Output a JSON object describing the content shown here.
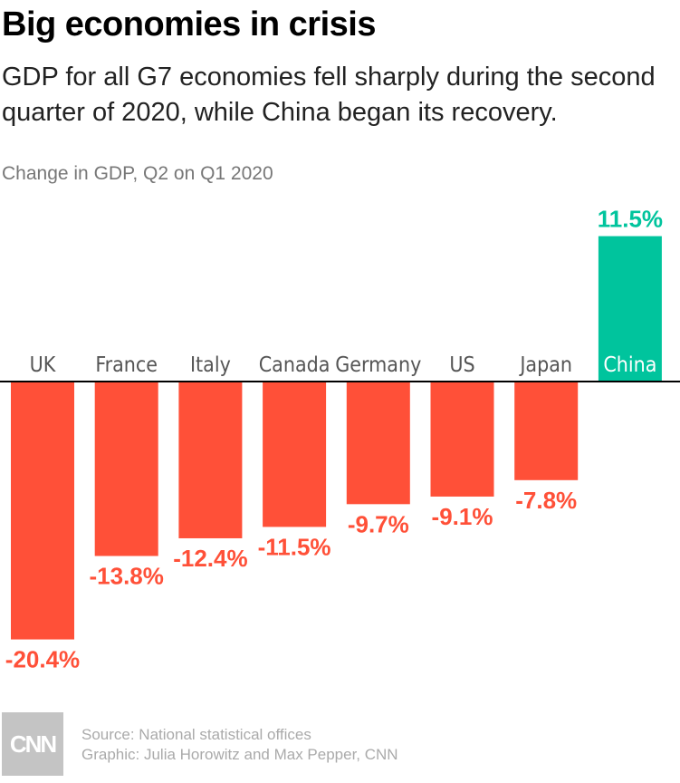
{
  "title": "Big economies in crisis",
  "subtitle": "GDP for all G7 economies fell sharply during the second quarter of 2020, while China began its recovery.",
  "unit_label": "Change in GDP, Q2 on Q1 2020",
  "chart_data": {
    "type": "bar",
    "title": "Big economies in crisis",
    "ylabel": "Change in GDP, Q2 on Q1 2020",
    "categories": [
      "UK",
      "France",
      "Italy",
      "Canada",
      "Germany",
      "US",
      "Japan",
      "China"
    ],
    "values": [
      -20.4,
      -13.8,
      -12.4,
      -11.5,
      -9.7,
      -9.1,
      -7.8,
      11.5
    ],
    "data_labels": [
      "-20.4%",
      "-13.8%",
      "-12.4%",
      "-11.5%",
      "-9.7%",
      "-9.1%",
      "-7.8%",
      "11.5%"
    ],
    "ylim": [
      -20.4,
      11.5
    ],
    "grid": false,
    "colors": {
      "negative": "#ff5038",
      "positive": "#00c49d",
      "axis": "#000000",
      "category_text": "#555555"
    }
  },
  "footer": {
    "logo": "CNN",
    "source": "Source: National statistical offices",
    "credit": "Graphic: Julia Horowitz and Max Pepper, CNN"
  }
}
